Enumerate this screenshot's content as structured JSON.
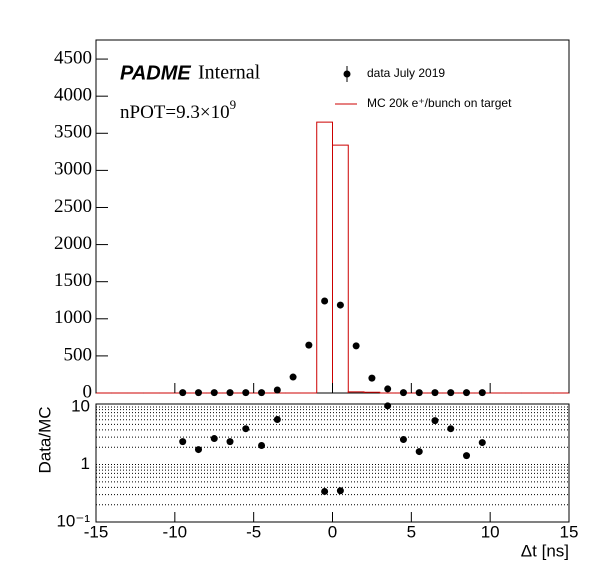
{
  "chart_data": [
    {
      "type": "histogram",
      "annotations": [
        {
          "text": "PADME"
        },
        {
          "text": "Internal"
        },
        {
          "text": "nPOT=9.3×10",
          "sup": "9"
        }
      ],
      "xlim": [
        -15,
        15
      ],
      "ylim": [
        0,
        4757
      ],
      "yticks": [
        0,
        500,
        1000,
        1500,
        2000,
        2500,
        3000,
        3500,
        4000,
        4500
      ],
      "bins": [
        -15,
        -14,
        -13,
        -12,
        -11,
        -10,
        -9,
        -8,
        -7,
        -6,
        -5,
        -4,
        -3,
        -2,
        -1,
        0,
        1,
        2,
        3,
        4,
        5,
        6,
        7,
        8,
        9,
        10,
        11,
        12,
        13,
        14,
        15
      ],
      "series": [
        {
          "name": "data July 2019",
          "color": "#000000",
          "x": [
            -9.5,
            -8.5,
            -7.5,
            -6.5,
            -5.5,
            -4.5,
            -3.5,
            -2.5,
            -1.5,
            -0.5,
            0.5,
            1.5,
            2.5,
            3.5,
            4.5,
            5.5,
            6.5,
            7.5,
            8.5,
            9.5
          ],
          "values": [
            5,
            5,
            5,
            5,
            5,
            5,
            40,
            215,
            645,
            1240,
            1185,
            635,
            200,
            55,
            5,
            5,
            5,
            5,
            5,
            5
          ]
        },
        {
          "name": "MC 20k e⁺/bunch on target",
          "color": "#cc0000",
          "values": [
            0,
            0,
            0,
            0,
            0,
            0,
            0,
            0,
            0,
            0,
            0,
            0,
            0,
            0,
            3650,
            3340,
            15,
            10,
            0,
            0,
            0,
            0,
            0,
            0,
            0,
            0,
            0,
            0,
            0,
            0
          ]
        }
      ]
    },
    {
      "type": "scatter",
      "y_label": "Data/MC",
      "x_label": "Δt [ns]",
      "log_y": true,
      "grid": true,
      "xlim": [
        -15,
        15
      ],
      "xticks": [
        -15,
        -10,
        -5,
        0,
        5,
        10,
        15
      ],
      "ylim": [
        0.1,
        11.3
      ],
      "yticks": [
        {
          "value": 0.1,
          "label": "10⁻¹"
        },
        1,
        10
      ],
      "minor_yticks": [
        0.2,
        0.3,
        0.4,
        0.5,
        0.6,
        0.7,
        0.8,
        0.9,
        2,
        3,
        4,
        5,
        6,
        7,
        8,
        9
      ],
      "color": "#000000",
      "x": [
        -9.5,
        -8.5,
        -7.5,
        -6.5,
        -5.5,
        -4.5,
        -3.5,
        -2.5,
        -1.5,
        -0.5,
        0.5,
        1.5,
        2.5,
        3.5,
        4.5,
        5.5,
        6.5,
        7.5,
        8.5,
        9.5
      ],
      "values": [
        2.5,
        1.82,
        2.83,
        2.5,
        4.2,
        2.14,
        6.06,
        null,
        null,
        0.34,
        0.35,
        null,
        null,
        10.5,
        2.72,
        1.68,
        5.8,
        4.2,
        1.43,
        2.41
      ]
    }
  ]
}
